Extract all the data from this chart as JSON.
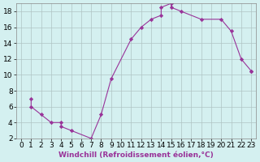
{
  "title": "",
  "xlabel": "Windchill (Refroidissement éolien,°C)",
  "ylabel": "",
  "background_color": "#d4f0f0",
  "grid_color": "#b0c4c4",
  "line_color": "#993399",
  "marker_color": "#993399",
  "xlim": [
    -0.5,
    23.5
  ],
  "ylim": [
    2,
    19
  ],
  "xticks": [
    0,
    1,
    2,
    3,
    4,
    5,
    6,
    7,
    8,
    9,
    10,
    11,
    12,
    13,
    14,
    15,
    16,
    17,
    18,
    19,
    20,
    21,
    22,
    23
  ],
  "yticks": [
    2,
    4,
    6,
    8,
    10,
    12,
    14,
    16,
    18
  ],
  "x_data": [
    1,
    1,
    2,
    3,
    4,
    4,
    5,
    7,
    8,
    9,
    11,
    12,
    13,
    14,
    14,
    15,
    15,
    16,
    18,
    20,
    21,
    22,
    23,
    23
  ],
  "y_data": [
    7,
    6,
    5,
    4,
    4,
    3.5,
    3,
    2,
    5,
    9.5,
    14.5,
    16,
    17,
    17.5,
    18.5,
    19,
    18.5,
    18,
    17,
    17,
    15.5,
    12,
    10.5,
    10.5
  ],
  "xlabel_fontsize": 6.5,
  "tick_fontsize": 6.5,
  "figsize": [
    3.2,
    2.0
  ],
  "dpi": 100
}
